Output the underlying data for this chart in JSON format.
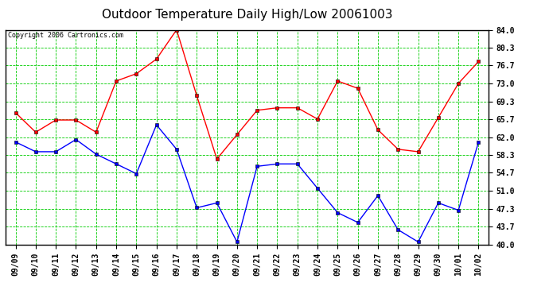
{
  "title": "Outdoor Temperature Daily High/Low 20061003",
  "copyright": "Copyright 2006 Cartronics.com",
  "dates": [
    "09/09",
    "09/10",
    "09/11",
    "09/12",
    "09/13",
    "09/14",
    "09/15",
    "09/16",
    "09/17",
    "09/18",
    "09/19",
    "09/20",
    "09/21",
    "09/22",
    "09/23",
    "09/24",
    "09/25",
    "09/26",
    "09/27",
    "09/28",
    "09/29",
    "09/30",
    "10/01",
    "10/02"
  ],
  "high_temps": [
    67.0,
    63.0,
    65.5,
    65.5,
    63.0,
    73.5,
    75.0,
    78.0,
    84.0,
    70.5,
    57.5,
    62.5,
    67.5,
    68.0,
    68.0,
    65.7,
    73.5,
    72.0,
    63.5,
    59.5,
    59.0,
    66.0,
    73.0,
    77.5
  ],
  "low_temps": [
    61.0,
    59.0,
    59.0,
    61.5,
    58.5,
    56.5,
    54.5,
    64.5,
    59.5,
    47.5,
    48.5,
    40.5,
    56.0,
    56.5,
    56.5,
    51.5,
    46.5,
    44.5,
    50.0,
    43.0,
    40.5,
    48.5,
    47.0,
    61.0
  ],
  "high_color": "#ff0000",
  "low_color": "#0000ff",
  "bg_color": "#ffffff",
  "plot_bg_color": "#ffffff",
  "grid_color": "#00cc00",
  "yticks": [
    40.0,
    43.7,
    47.3,
    51.0,
    54.7,
    58.3,
    62.0,
    65.7,
    69.3,
    73.0,
    76.7,
    80.3,
    84.0
  ],
  "ylim": [
    40.0,
    84.0
  ],
  "title_fontsize": 11,
  "copyright_fontsize": 6,
  "tick_fontsize": 7
}
